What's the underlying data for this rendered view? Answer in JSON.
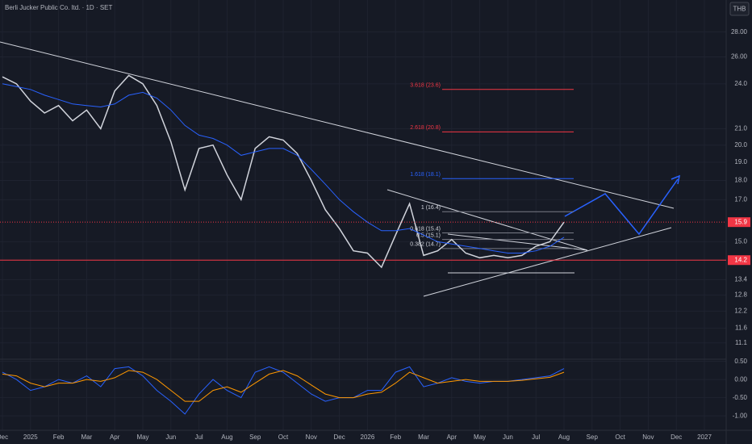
{
  "header": {
    "title": "Berli Jucker Public Co. ltd. · 1D · SET",
    "currency": "THB"
  },
  "chart_data": [
    {
      "type": "line",
      "log_scale": true,
      "grid": true,
      "categories": [
        "Dec",
        null,
        "2025",
        null,
        "Feb",
        null,
        "Mar",
        null,
        "Apr",
        null,
        "May",
        null,
        "Jun",
        null,
        "Jul",
        null,
        "Aug",
        null,
        "Sep",
        null,
        "Oct",
        null,
        "Nov",
        null,
        "Dec",
        null,
        "2026",
        null,
        "Feb",
        null,
        "Mar",
        null,
        "Apr",
        null,
        "May",
        null,
        "Jun",
        null,
        "Jul",
        null,
        "Aug",
        null,
        "Sep",
        null,
        "Oct",
        null,
        "Nov",
        null,
        "Dec",
        null,
        "2027"
      ],
      "series": [
        {
          "color": "#d1d4dc",
          "values": [
            24.5,
            24.0,
            22.8,
            22.0,
            22.5,
            21.5,
            22.2,
            21.0,
            23.5,
            24.6,
            24.0,
            22.5,
            20.2,
            17.5,
            19.8,
            20.0,
            18.3,
            17.0,
            19.8,
            20.5,
            20.3,
            19.5,
            18.0,
            16.5,
            15.6,
            14.6,
            14.5,
            13.9,
            15.3,
            16.8,
            14.4,
            14.6,
            15.1,
            14.5,
            14.3,
            14.4,
            14.3,
            14.4,
            14.8,
            15.0,
            15.9,
            null,
            null,
            null,
            null,
            null,
            null,
            null,
            null,
            null,
            null
          ]
        },
        {
          "color": "#2962ff",
          "values": [
            24.0,
            23.8,
            23.6,
            23.2,
            22.9,
            22.6,
            22.5,
            22.4,
            22.6,
            23.2,
            23.4,
            23.0,
            22.2,
            21.2,
            20.6,
            20.4,
            20.0,
            19.4,
            19.6,
            19.8,
            19.8,
            19.4,
            18.6,
            17.8,
            17.0,
            16.4,
            15.9,
            15.5,
            15.5,
            15.6,
            15.3,
            15.0,
            14.9,
            14.8,
            14.7,
            14.6,
            14.5,
            14.5,
            14.6,
            14.8,
            15.2,
            null,
            null,
            null,
            null,
            null,
            null,
            null,
            null,
            null,
            null
          ]
        }
      ],
      "ylim": [
        10.7,
        30.8
      ],
      "yticks": [
        {
          "value": 28,
          "label": "28.00"
        },
        {
          "value": 26,
          "label": "26.00"
        },
        {
          "value": 24,
          "label": "24.0"
        },
        {
          "value": 21,
          "label": "21.0"
        },
        {
          "value": 20,
          "label": "20.0"
        },
        {
          "value": 19,
          "label": "19.0"
        },
        {
          "value": 18,
          "label": "18.0"
        },
        {
          "value": 17,
          "label": "17.0"
        },
        {
          "value": 15,
          "label": "15.0"
        },
        14.2,
        13.4,
        12.8,
        12.2,
        11.6,
        11.1
      ],
      "hline": 14.2,
      "hline_color": "#f23645",
      "last_price": 15.9,
      "last_price_color": "#f23645",
      "fib_levels": [
        {
          "value": 23.6,
          "label": "3.618 (23.6)",
          "color": "#f23645"
        },
        {
          "value": 20.8,
          "label": "2.618 (20.8)",
          "color": "#f23645"
        },
        {
          "value": 18.1,
          "label": "1.618 (18.1)",
          "color": "#2962ff"
        },
        {
          "value": 16.4,
          "label": "1 (16.4)",
          "color": "#787b86"
        },
        {
          "value": 15.4,
          "label": "0.618 (15.4)",
          "color": "#787b86"
        },
        {
          "value": 15.1,
          "label": "0.5 (15.1)",
          "color": "#787b86"
        },
        {
          "value": 14.7,
          "label": "0.382 (14.7)",
          "color": "#787b86"
        }
      ]
    },
    {
      "type": "line",
      "grid": true,
      "series": [
        {
          "color": "#2962ff",
          "values": [
            0.2,
            0,
            -0.3,
            -0.2,
            0,
            -0.1,
            0.1,
            -0.2,
            0.3,
            0.35,
            0.1,
            -0.3,
            -0.6,
            -0.95,
            -0.4,
            0,
            -0.3,
            -0.5,
            0.2,
            0.35,
            0.2,
            -0.1,
            -0.4,
            -0.6,
            -0.5,
            -0.5,
            -0.3,
            -0.3,
            0.2,
            0.35,
            -0.2,
            -0.1,
            0.05,
            -0.05,
            -0.1,
            -0.05,
            -0.05,
            0,
            0.05,
            0.1,
            0.3,
            null,
            null,
            null,
            null,
            null,
            null,
            null,
            null,
            null,
            null
          ]
        },
        {
          "color": "#ff9800",
          "values": [
            0.15,
            0.1,
            -0.1,
            -0.2,
            -0.1,
            -0.1,
            0,
            -0.05,
            0.05,
            0.25,
            0.2,
            0,
            -0.3,
            -0.6,
            -0.6,
            -0.3,
            -0.2,
            -0.35,
            -0.1,
            0.15,
            0.25,
            0.1,
            -0.15,
            -0.4,
            -0.5,
            -0.5,
            -0.4,
            -0.35,
            -0.1,
            0.2,
            0.05,
            -0.1,
            -0.05,
            0,
            -0.05,
            -0.05,
            -0.05,
            -0.02,
            0.02,
            0.06,
            0.2,
            null,
            null,
            null,
            null,
            null,
            null,
            null,
            null,
            null,
            null
          ]
        }
      ],
      "ylim": [
        -1.33,
        0.67
      ],
      "yticks": [
        {
          "value": 0.5,
          "label": "0.50"
        },
        {
          "value": 0,
          "label": "0.00"
        },
        {
          "value": -0.5,
          "label": "-0.50"
        },
        {
          "value": -1,
          "label": "-1.00"
        }
      ]
    }
  ]
}
